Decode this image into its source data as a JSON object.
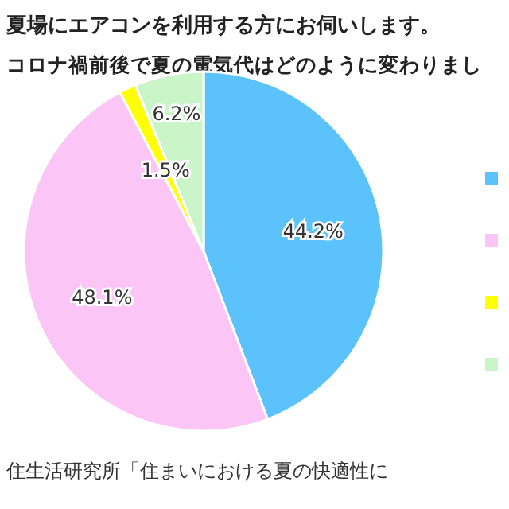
{
  "chart_data": {
    "type": "pie",
    "title": "夏場にエアコンを利用する方にお伺いします。",
    "subtitle": "コロナ禍前後で夏の電気代はどのように変わりまし",
    "annotations": [
      "住生活研究所「住まいにおける夏の快適性に"
    ],
    "categories": [
      null,
      null,
      null,
      null
    ],
    "values": [
      44.2,
      48.1,
      1.5,
      6.2
    ],
    "value_labels": [
      "44.2%",
      "48.1%",
      "1.5%",
      "6.2%"
    ],
    "colors": [
      "#5bc2fb",
      "#fbc6f6",
      "#ffff00",
      "#c9f5c9"
    ]
  }
}
